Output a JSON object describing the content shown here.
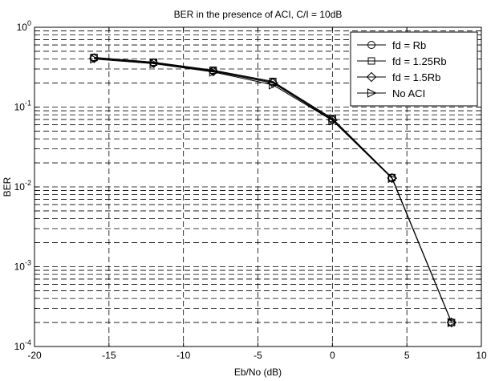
{
  "chart_data": {
    "type": "line",
    "title": "BER in the presence of ACI, C/I = 10dB",
    "xlabel": "Eb/No (dB)",
    "ylabel": "BER",
    "xlim": [
      -20,
      10
    ],
    "ylim": [
      0.0001,
      1
    ],
    "yscale": "log",
    "grid": true,
    "legend_position": "top-right",
    "x_ticks": [
      "-20",
      "-15",
      "-10",
      "-5",
      "0",
      "5",
      "10"
    ],
    "y_ticks": [
      {
        "base": "10",
        "exp": "-4",
        "value": 0.0001
      },
      {
        "base": "10",
        "exp": "-3",
        "value": 0.001
      },
      {
        "base": "10",
        "exp": "-2",
        "value": 0.01
      },
      {
        "base": "10",
        "exp": "-1",
        "value": 0.1
      },
      {
        "base": "10",
        "exp": "0",
        "value": 1
      }
    ],
    "x": [
      -16,
      -12,
      -8,
      -4,
      0,
      4,
      8
    ],
    "series": [
      {
        "name": "fd = Rb",
        "marker": "circle",
        "values": [
          0.41,
          0.36,
          0.285,
          0.205,
          0.07,
          0.013,
          0.0002
        ]
      },
      {
        "name": "fd = 1.25Rb",
        "marker": "square",
        "values": [
          0.42,
          0.365,
          0.29,
          0.21,
          0.072,
          0.0131,
          0.0002
        ]
      },
      {
        "name": "fd = 1.5Rb",
        "marker": "diamond",
        "values": [
          0.41,
          0.355,
          0.28,
          0.2,
          0.069,
          0.0129,
          0.0002
        ]
      },
      {
        "name": "No ACI",
        "marker": "triangle-right",
        "values": [
          0.4,
          0.35,
          0.275,
          0.19,
          0.068,
          0.0128,
          0.0002
        ]
      }
    ],
    "line_color": "#000000",
    "grid_color": "#000000"
  }
}
